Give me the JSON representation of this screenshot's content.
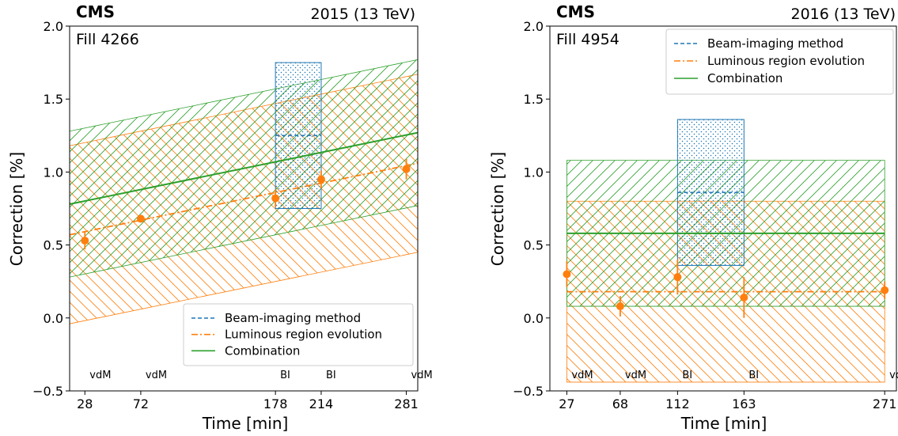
{
  "chart_data": [
    {
      "type": "line",
      "experiment": "CMS",
      "energy_label": "2015 (13 TeV)",
      "fill_label": "Fill 4266",
      "xlabel": "Time [min]",
      "ylabel": "Correction [%]",
      "ylim": [
        -0.5,
        2.0
      ],
      "xlim": [
        16,
        290
      ],
      "yticks": [
        -0.5,
        0.0,
        0.5,
        1.0,
        1.5,
        2.0
      ],
      "ytick_labels": [
        "−0.5",
        "0.0",
        "0.5",
        "1.0",
        "1.5",
        "2.0"
      ],
      "xticks": [
        28,
        72,
        178,
        214,
        281
      ],
      "xtick_labels": [
        "28",
        "72",
        "178",
        "214",
        "281"
      ],
      "scan_annotations": [
        {
          "x": 28,
          "label": "vdM"
        },
        {
          "x": 72,
          "label": "vdM"
        },
        {
          "x": 178,
          "label": "BI"
        },
        {
          "x": 214,
          "label": "BI"
        },
        {
          "x": 281,
          "label": "vdM"
        }
      ],
      "legend": [
        "Beam-imaging method",
        "Luminous region evolution",
        "Combination"
      ],
      "legend_position": "lower right",
      "beam_imaging": {
        "x_range": [
          178,
          214
        ],
        "value": 1.25,
        "band": [
          0.75,
          1.75
        ]
      },
      "luminous_region": {
        "x_range": [
          16,
          290
        ],
        "line": [
          0.57,
          1.06
        ],
        "band_low": [
          -0.04,
          0.45
        ],
        "band_high": [
          1.18,
          1.67
        ],
        "points": [
          {
            "x": 28,
            "y": 0.53,
            "err": 0.06
          },
          {
            "x": 72,
            "y": 0.68,
            "err": 0.02
          },
          {
            "x": 178,
            "y": 0.82,
            "err": 0.06
          },
          {
            "x": 214,
            "y": 0.95,
            "err": 0.06
          },
          {
            "x": 281,
            "y": 1.02,
            "err": 0.07
          }
        ]
      },
      "combination": {
        "x_range": [
          16,
          290
        ],
        "line": [
          0.78,
          1.27
        ],
        "band_low": [
          0.28,
          0.77
        ],
        "band_high": [
          1.28,
          1.77
        ]
      },
      "colors": {
        "beam_imaging": "#1f77b4",
        "luminous_region": "#ff7f0e",
        "combination": "#2ca02c"
      }
    },
    {
      "type": "line",
      "experiment": "CMS",
      "energy_label": "2016 (13 TeV)",
      "fill_label": "Fill 4954",
      "xlabel": "Time [min]",
      "ylabel": "Correction [%]",
      "ylim": [
        -0.5,
        2.0
      ],
      "xlim": [
        14,
        280
      ],
      "yticks": [
        -0.5,
        0.0,
        0.5,
        1.0,
        1.5,
        2.0
      ],
      "ytick_labels": [
        "−0.5",
        "0.0",
        "0.5",
        "1.0",
        "1.5",
        "2.0"
      ],
      "xticks": [
        27,
        68,
        112,
        163,
        271
      ],
      "xtick_labels": [
        "27",
        "68",
        "112",
        "163",
        "271"
      ],
      "scan_annotations": [
        {
          "x": 27,
          "label": "vdM"
        },
        {
          "x": 68,
          "label": "vdM"
        },
        {
          "x": 112,
          "label": "BI"
        },
        {
          "x": 163,
          "label": "BI"
        },
        {
          "x": 271,
          "label": "vdM"
        }
      ],
      "legend": [
        "Beam-imaging method",
        "Luminous region evolution",
        "Combination"
      ],
      "legend_position": "upper right",
      "beam_imaging": {
        "x_range": [
          112,
          163
        ],
        "value": 0.86,
        "band": [
          0.36,
          1.36
        ]
      },
      "luminous_region": {
        "x_range": [
          27,
          271
        ],
        "line": [
          0.18,
          0.18
        ],
        "band_low": [
          -0.44,
          -0.44
        ],
        "band_high": [
          0.8,
          0.8
        ],
        "points": [
          {
            "x": 27,
            "y": 0.3,
            "err": 0.09
          },
          {
            "x": 68,
            "y": 0.08,
            "err": 0.07
          },
          {
            "x": 112,
            "y": 0.28,
            "err": 0.12
          },
          {
            "x": 163,
            "y": 0.14,
            "err": 0.14
          },
          {
            "x": 271,
            "y": 0.19,
            "err": 0.06
          }
        ]
      },
      "combination": {
        "x_range": [
          27,
          271
        ],
        "line": [
          0.58,
          0.58
        ],
        "band_low": [
          0.08,
          0.08
        ],
        "band_high": [
          1.08,
          1.08
        ]
      },
      "colors": {
        "beam_imaging": "#1f77b4",
        "luminous_region": "#ff7f0e",
        "combination": "#2ca02c"
      }
    }
  ]
}
